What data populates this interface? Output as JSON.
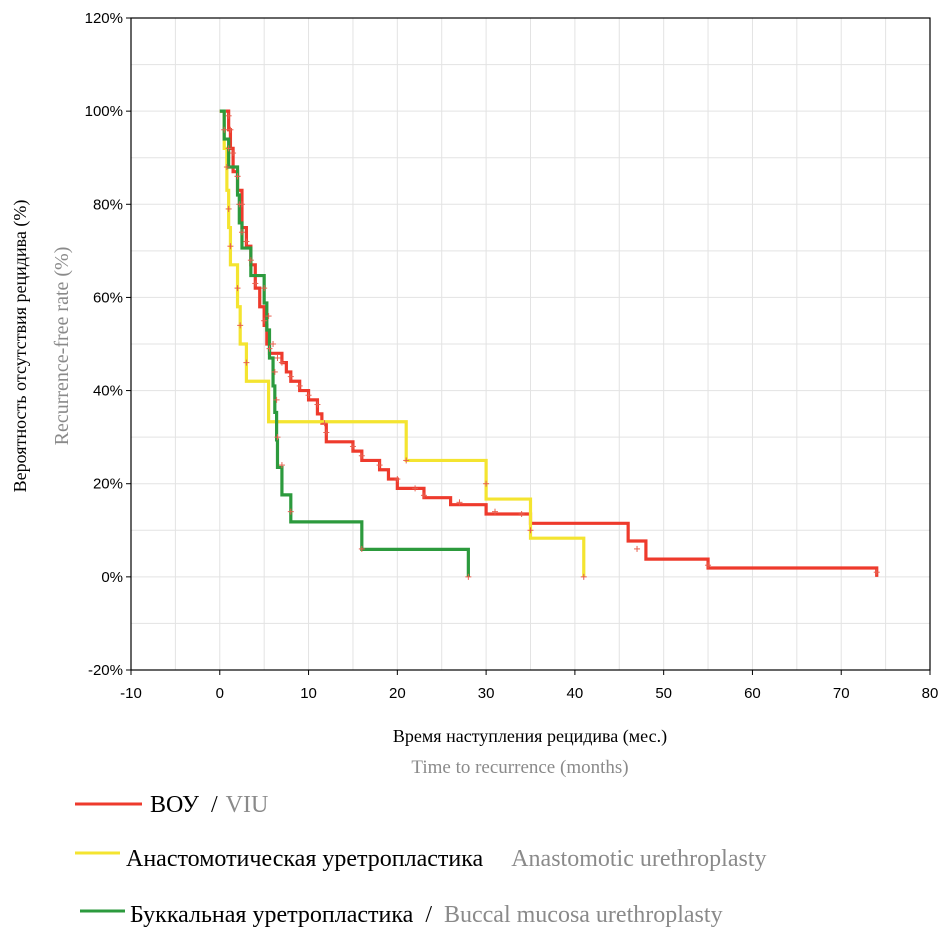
{
  "chart_data": {
    "type": "line",
    "subtype": "kaplan-meier-step",
    "xlim": [
      -10,
      80
    ],
    "ylim": [
      -20,
      120
    ],
    "x_ticks": [
      "-10",
      "0",
      "10",
      "20",
      "30",
      "40",
      "50",
      "60",
      "70",
      "80"
    ],
    "y_ticks": [
      "-20%",
      "0%",
      "20%",
      "40%",
      "60%",
      "80%",
      "100%",
      "120%"
    ],
    "xlabel_ru": "Время наступления рецидива (мес.)",
    "xlabel_en": "Time to recurrence (months)",
    "ylabel_ru": "Вероятность отсутствия рецидива (%)",
    "ylabel_en": "Recurrence-free rate (%)",
    "grid": true,
    "series": [
      {
        "name": "VIU",
        "color": "#ee3a2c",
        "steps": [
          [
            0,
            100
          ],
          [
            1,
            96
          ],
          [
            1.2,
            92
          ],
          [
            1.5,
            87
          ],
          [
            2,
            83
          ],
          [
            2.5,
            75
          ],
          [
            3,
            71
          ],
          [
            3.5,
            67
          ],
          [
            4,
            62
          ],
          [
            4.5,
            58
          ],
          [
            5,
            54
          ],
          [
            5.3,
            50
          ],
          [
            5.6,
            48
          ],
          [
            7,
            46
          ],
          [
            7.5,
            44
          ],
          [
            8,
            42
          ],
          [
            9,
            40
          ],
          [
            10,
            38
          ],
          [
            11,
            35
          ],
          [
            11.5,
            33
          ],
          [
            12,
            29
          ],
          [
            15,
            27
          ],
          [
            16,
            25
          ],
          [
            18,
            23
          ],
          [
            19,
            21
          ],
          [
            20,
            19
          ],
          [
            23,
            17
          ],
          [
            26,
            15.5
          ],
          [
            30,
            13.5
          ],
          [
            34,
            13.5
          ],
          [
            35,
            11.5
          ],
          [
            46,
            7.7
          ],
          [
            48,
            3.8
          ],
          [
            55,
            1.9
          ],
          [
            74,
            0
          ]
        ],
        "censored": [
          [
            1,
            99
          ],
          [
            1.2,
            96
          ],
          [
            1.5,
            91
          ],
          [
            2,
            86
          ],
          [
            2.5,
            80
          ],
          [
            3,
            72
          ],
          [
            4,
            63
          ],
          [
            5,
            55
          ],
          [
            5.6,
            49
          ],
          [
            6.5,
            47
          ],
          [
            7,
            46
          ],
          [
            8,
            43
          ],
          [
            9,
            41
          ],
          [
            10,
            39
          ],
          [
            11,
            37
          ],
          [
            11.8,
            33
          ],
          [
            12,
            31
          ],
          [
            15,
            28
          ],
          [
            16,
            26
          ],
          [
            18,
            24
          ],
          [
            20,
            21
          ],
          [
            22,
            19
          ],
          [
            23,
            17.5
          ],
          [
            27,
            16
          ],
          [
            31,
            14
          ],
          [
            34,
            13.5
          ],
          [
            47,
            6
          ],
          [
            55,
            2.5
          ],
          [
            74,
            1
          ]
        ]
      },
      {
        "name": "Anastomotic urethroplasty",
        "color": "#f4e430",
        "steps": [
          [
            0,
            100
          ],
          [
            0.5,
            92
          ],
          [
            0.8,
            83
          ],
          [
            1,
            75
          ],
          [
            1.2,
            67
          ],
          [
            2,
            58
          ],
          [
            2.3,
            50
          ],
          [
            3,
            42
          ],
          [
            5.5,
            33.3
          ],
          [
            21,
            25
          ],
          [
            30,
            16.7
          ],
          [
            35,
            8.3
          ],
          [
            41,
            0
          ]
        ],
        "censored": [
          [
            0.5,
            96
          ],
          [
            0.8,
            88
          ],
          [
            1,
            79
          ],
          [
            1.2,
            71
          ],
          [
            2,
            62
          ],
          [
            2.3,
            54
          ],
          [
            3,
            46
          ],
          [
            21,
            25
          ],
          [
            30,
            20
          ],
          [
            35,
            10
          ],
          [
            41,
            0
          ]
        ]
      },
      {
        "name": "Buccal mucosa urethroplasty",
        "color": "#2c9a3d",
        "steps": [
          [
            0,
            100
          ],
          [
            0.5,
            94
          ],
          [
            1,
            88
          ],
          [
            2,
            82
          ],
          [
            2.2,
            76
          ],
          [
            2.5,
            70.6
          ],
          [
            3.5,
            64.7
          ],
          [
            5,
            58.8
          ],
          [
            5.3,
            53
          ],
          [
            5.6,
            47
          ],
          [
            6,
            41
          ],
          [
            6.2,
            35.3
          ],
          [
            6.4,
            29.4
          ],
          [
            6.5,
            23.5
          ],
          [
            7,
            17.6
          ],
          [
            8,
            11.8
          ],
          [
            16,
            5.9
          ],
          [
            28,
            0
          ]
        ],
        "censored": [
          [
            1,
            92
          ],
          [
            2,
            86
          ],
          [
            2.2,
            80
          ],
          [
            2.5,
            74
          ],
          [
            3.5,
            68
          ],
          [
            5,
            62
          ],
          [
            5.5,
            56
          ],
          [
            6,
            50
          ],
          [
            6.2,
            44
          ],
          [
            6.4,
            38
          ],
          [
            6.5,
            30
          ],
          [
            7,
            24
          ],
          [
            8,
            14
          ],
          [
            16,
            6
          ],
          [
            28,
            0
          ]
        ]
      }
    ]
  },
  "legend": [
    {
      "label_ru": "ВОУ",
      "separator": "/",
      "label_en": "VIU"
    },
    {
      "label_ru": "Анастомотическая уретропластика",
      "separator": "",
      "label_en": "Anastomotic urethroplasty"
    },
    {
      "label_ru": "Буккальная уретропластика",
      "separator": "/",
      "label_en": "Buccal mucosa urethroplasty"
    }
  ]
}
